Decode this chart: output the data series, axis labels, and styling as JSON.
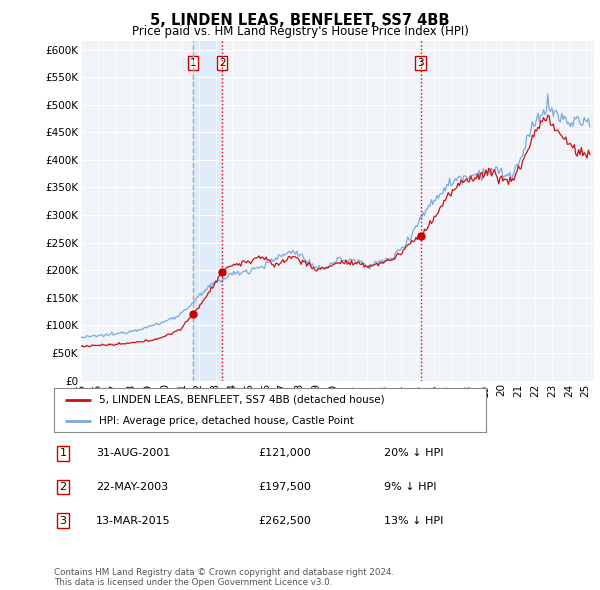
{
  "title": "5, LINDEN LEAS, BENFLEET, SS7 4BB",
  "subtitle": "Price paid vs. HM Land Registry's House Price Index (HPI)",
  "ylabel_ticks": [
    "£0",
    "£50K",
    "£100K",
    "£150K",
    "£200K",
    "£250K",
    "£300K",
    "£350K",
    "£400K",
    "£450K",
    "£500K",
    "£550K",
    "£600K"
  ],
  "ytick_values": [
    0,
    50000,
    100000,
    150000,
    200000,
    250000,
    300000,
    350000,
    400000,
    450000,
    500000,
    550000,
    600000
  ],
  "ylim": [
    0,
    615000
  ],
  "xlim_start": 1995.0,
  "xlim_end": 2025.5,
  "sale_dates": [
    2001.667,
    2003.389,
    2015.19
  ],
  "sale_prices": [
    121000,
    197500,
    262500
  ],
  "sale_labels": [
    "1",
    "2",
    "3"
  ],
  "vline1_color": "#aaaaaa",
  "vline1_style": "--",
  "vline23_color": "#dd0000",
  "vline23_style": ":",
  "sale_dot_color": "#cc0000",
  "hpi_line_color": "#7aaadd",
  "price_line_color": "#cc1111",
  "background_color": "#ffffff",
  "plot_bg_color": "#f0f4f8",
  "legend_label_price": "5, LINDEN LEAS, BENFLEET, SS7 4BB (detached house)",
  "legend_label_hpi": "HPI: Average price, detached house, Castle Point",
  "table_data": [
    [
      "1",
      "31-AUG-2001",
      "£121,000",
      "20% ↓ HPI"
    ],
    [
      "2",
      "22-MAY-2003",
      "£197,500",
      "9% ↓ HPI"
    ],
    [
      "3",
      "13-MAR-2015",
      "£262,500",
      "13% ↓ HPI"
    ]
  ],
  "footer": "Contains HM Land Registry data © Crown copyright and database right 2024.\nThis data is licensed under the Open Government Licence v3.0.",
  "highlight_color": "#d8e8f8",
  "highlight_alpha": 0.7
}
